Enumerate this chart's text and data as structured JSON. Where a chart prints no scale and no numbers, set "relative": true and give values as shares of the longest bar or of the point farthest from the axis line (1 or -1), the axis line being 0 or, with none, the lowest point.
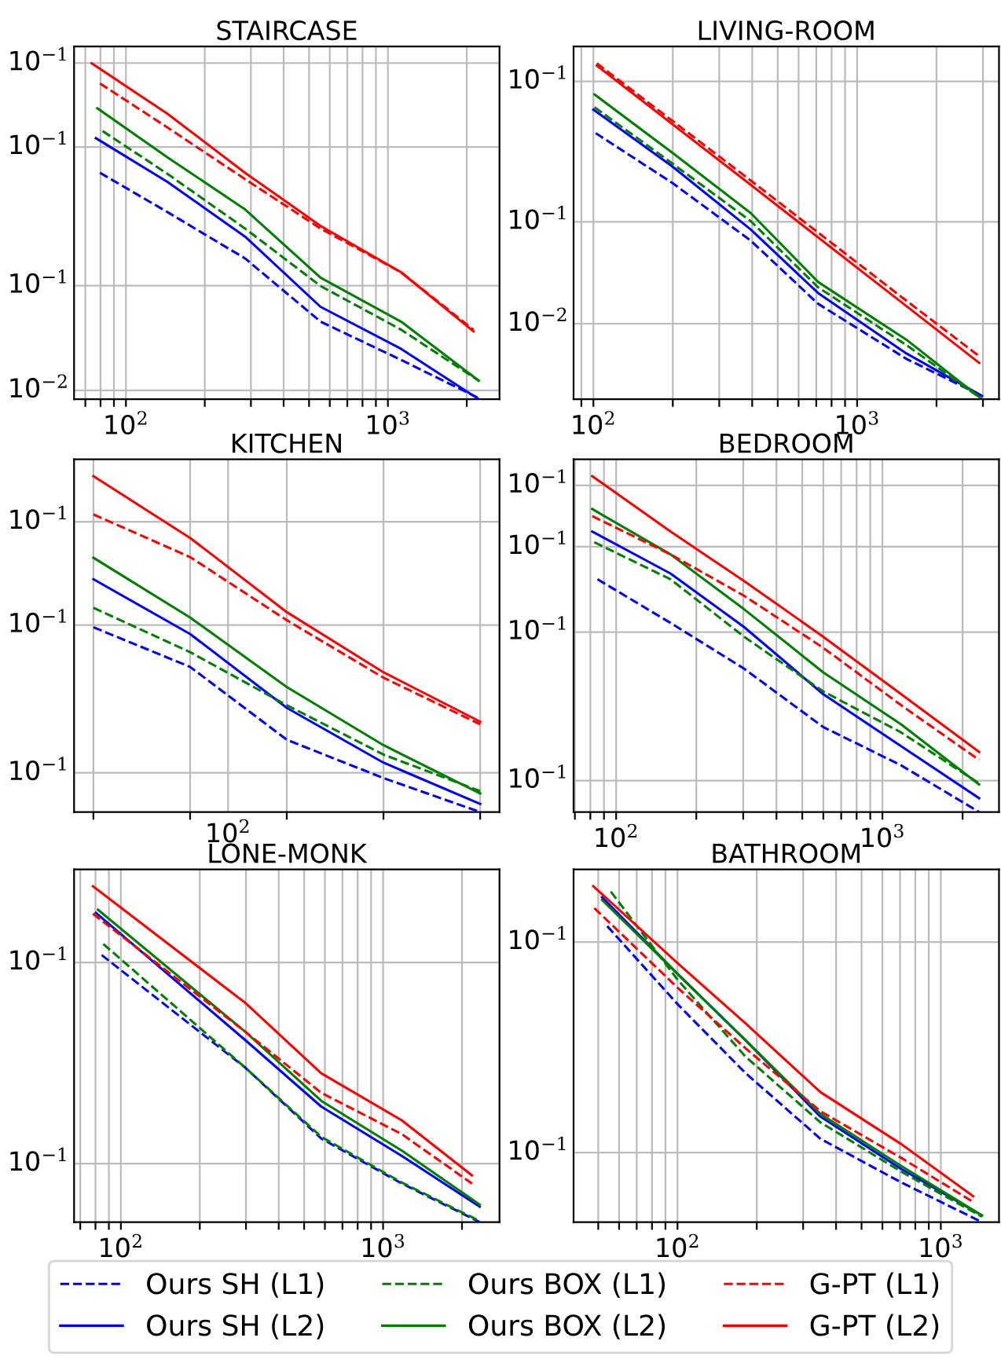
{
  "chart_data": [
    {
      "type": "line",
      "title": "STAIRCASE",
      "relative": true,
      "log": "x",
      "grid": true,
      "legend": "bottom",
      "xlim": [
        63.4,
        2667
      ],
      "xticks": [
        {
          "value": 70,
          "label": null
        },
        {
          "value": 80,
          "label": null
        },
        {
          "value": 90,
          "label": null
        },
        {
          "value": 100,
          "label": "10$^{2}$"
        },
        {
          "value": 200,
          "label": null
        },
        {
          "value": 300,
          "label": null
        },
        {
          "value": 400,
          "label": null
        },
        {
          "value": 500,
          "label": null
        },
        {
          "value": 600,
          "label": null
        },
        {
          "value": 700,
          "label": null
        },
        {
          "value": 800,
          "label": null
        },
        {
          "value": 900,
          "label": null
        },
        {
          "value": 1000,
          "label": "10$^{3}$"
        },
        {
          "value": 2000,
          "label": null
        }
      ],
      "annotations": [
        "10$^{−1}$",
        "10$^{−1}$",
        "10$^{−1}$",
        "10$^{−2}$"
      ],
      "series": [
        {
          "name": "Ours SH (L1)",
          "color": "#0000ff",
          "line_style": "dashed",
          "x": [
            79.6,
            144,
            285,
            553,
            1122,
            2223
          ],
          "values": [
            0.674,
            0.557,
            0.419,
            0.231,
            0.117,
            0.003
          ]
        },
        {
          "name": "Ours SH (L2)",
          "color": "#0000ff",
          "line_style": "solid",
          "x": [
            76.8,
            144,
            285,
            553,
            1122,
            2223
          ],
          "values": [
            0.777,
            0.647,
            0.484,
            0.275,
            0.15,
            0
          ]
        },
        {
          "name": "Ours BOX (L1)",
          "color": "#008000",
          "line_style": "dashed",
          "x": [
            81.5,
            144,
            285,
            553,
            1122,
            2223
          ],
          "values": [
            0.798,
            0.671,
            0.508,
            0.337,
            0.207,
            0.055
          ]
        },
        {
          "name": "Ours BOX (L2)",
          "color": "#008000",
          "line_style": "solid",
          "x": [
            77.8,
            144,
            285,
            553,
            1122,
            2223
          ],
          "values": [
            0.866,
            0.72,
            0.565,
            0.362,
            0.231,
            0.055
          ]
        },
        {
          "name": "G-PT (L1)",
          "color": "#ff0000",
          "line_style": "dashed",
          "x": [
            79.6,
            144,
            285,
            553,
            1122,
            2120
          ],
          "values": [
            0.94,
            0.809,
            0.655,
            0.508,
            0.378,
            0.207
          ]
        },
        {
          "name": "G-PT (L2)",
          "color": "#ff0000",
          "line_style": "solid",
          "x": [
            74,
            144,
            285,
            553,
            1122,
            2120
          ],
          "values": [
            1,
            0.85,
            0.674,
            0.516,
            0.378,
            0.202
          ]
        }
      ]
    },
    {
      "type": "line",
      "title": "LIVING-ROOM",
      "relative": true,
      "log": "x",
      "grid": true,
      "xlim": [
        84.1,
        3451
      ],
      "xticks": [
        {
          "value": 90,
          "label": null
        },
        {
          "value": 100,
          "label": "10$^{2}$"
        },
        {
          "value": 200,
          "label": null
        },
        {
          "value": 300,
          "label": null
        },
        {
          "value": 400,
          "label": null
        },
        {
          "value": 500,
          "label": null
        },
        {
          "value": 600,
          "label": null
        },
        {
          "value": 700,
          "label": null
        },
        {
          "value": 800,
          "label": null
        },
        {
          "value": 900,
          "label": null
        },
        {
          "value": 1000,
          "label": "10$^{3}$"
        },
        {
          "value": 2000,
          "label": null
        },
        {
          "value": 3000,
          "label": null
        }
      ],
      "annotations": [
        "10$^{−1}$",
        "10$^{−1}$",
        "10$^{−2}$"
      ],
      "series": [
        {
          "color": "#0000ff",
          "line_style": "dashed",
          "x": [
            102,
            199,
            395,
            711,
            1538,
            2972
          ],
          "values": [
            0.792,
            0.644,
            0.472,
            0.284,
            0.12,
            0.01
          ]
        },
        {
          "color": "#0000ff",
          "line_style": "solid",
          "x": [
            100,
            199,
            395,
            711,
            1538,
            2972
          ],
          "values": [
            0.862,
            0.693,
            0.505,
            0.316,
            0.136,
            0.01
          ]
        },
        {
          "color": "#008000",
          "line_style": "dashed",
          "x": [
            101,
            199,
            395,
            711,
            1538,
            2972
          ],
          "values": [
            0.869,
            0.702,
            0.53,
            0.333,
            0.161,
            0
          ]
        },
        {
          "color": "#008000",
          "line_style": "solid",
          "x": [
            101,
            199,
            395,
            711,
            1538,
            2972
          ],
          "values": [
            0.907,
            0.734,
            0.554,
            0.349,
            0.177,
            0
          ]
        },
        {
          "color": "#ff0000",
          "line_style": "dashed",
          "x": [
            103,
            395,
            1538,
            2904
          ],
          "values": [
            1,
            0.651,
            0.293,
            0.128
          ]
        },
        {
          "color": "#ff0000",
          "line_style": "solid",
          "x": [
            103,
            395,
            1538,
            2904
          ],
          "values": [
            0.993,
            0.638,
            0.277,
            0.108
          ]
        }
      ]
    },
    {
      "type": "line",
      "title": "KITCHEN",
      "relative": true,
      "grid": true,
      "categories": [
        null,
        null,
        null,
        null,
        null
      ],
      "annotations": [
        "10$^{−1}$",
        "10$^{−1}$",
        "10$^{−1}$",
        "10$^{2}$"
      ],
      "series": [
        {
          "color": "#0000ff",
          "line_style": "dashed",
          "values": [
            0.55,
            0.432,
            0.215,
            0.101,
            0
          ]
        },
        {
          "color": "#0000ff",
          "line_style": "solid",
          "values": [
            0.693,
            0.53,
            0.31,
            0.147,
            0.024
          ]
        },
        {
          "color": "#008000",
          "line_style": "dashed",
          "values": [
            0.608,
            0.476,
            0.318,
            0.171,
            0.062
          ]
        },
        {
          "color": "#008000",
          "line_style": "solid",
          "values": [
            0.757,
            0.579,
            0.372,
            0.199,
            0.055
          ]
        },
        {
          "color": "#ff0000",
          "line_style": "dashed",
          "values": [
            0.886,
            0.759,
            0.571,
            0.4,
            0.261
          ]
        },
        {
          "color": "#ff0000",
          "line_style": "solid",
          "values": [
            1,
            0.816,
            0.595,
            0.416,
            0.269
          ]
        }
      ]
    },
    {
      "type": "line",
      "title": "BEDROOM",
      "relative": true,
      "log": "x",
      "grid": true,
      "xlim": [
        69.2,
        2740
      ],
      "xticks": [
        {
          "value": 70,
          "label": null
        },
        {
          "value": 80,
          "label": null
        },
        {
          "value": 90,
          "label": null
        },
        {
          "value": 100,
          "label": "10$^{2}$"
        },
        {
          "value": 200,
          "label": null
        },
        {
          "value": 300,
          "label": null
        },
        {
          "value": 400,
          "label": null
        },
        {
          "value": 500,
          "label": null
        },
        {
          "value": 600,
          "label": null
        },
        {
          "value": 700,
          "label": null
        },
        {
          "value": 800,
          "label": null
        },
        {
          "value": 900,
          "label": null
        },
        {
          "value": 1000,
          "label": "10$^{3}$"
        },
        {
          "value": 2000,
          "label": null
        }
      ],
      "annotations": [
        "10$^{−1}$",
        "10$^{−1}$",
        "10$^{−1}$",
        "10$^{−1}$"
      ],
      "series": [
        {
          "color": "#0000ff",
          "line_style": "dashed",
          "x": [
            85.1,
            160,
            302,
            599,
            1175,
            2307
          ],
          "values": [
            0.693,
            0.563,
            0.427,
            0.253,
            0.139,
            0
          ]
        },
        {
          "color": "#0000ff",
          "line_style": "solid",
          "x": [
            81.3,
            160,
            302,
            599,
            1175,
            2307
          ],
          "values": [
            0.835,
            0.71,
            0.551,
            0.351,
            0.196,
            0.041
          ]
        },
        {
          "color": "#008000",
          "line_style": "dashed",
          "x": [
            82.8,
            160,
            302,
            599,
            1175,
            2307
          ],
          "values": [
            0.803,
            0.693,
            0.522,
            0.359,
            0.237,
            0.085
          ]
        },
        {
          "color": "#008000",
          "line_style": "solid",
          "x": [
            81.3,
            160,
            302,
            599,
            1175,
            2307
          ],
          "values": [
            0.902,
            0.767,
            0.604,
            0.416,
            0.261,
            0.082
          ]
        },
        {
          "color": "#ff0000",
          "line_style": "dashed",
          "x": [
            81.3,
            160,
            302,
            599,
            1175,
            2307
          ],
          "values": [
            0.881,
            0.767,
            0.644,
            0.489,
            0.318,
            0.155
          ]
        },
        {
          "color": "#ff0000",
          "line_style": "solid",
          "x": [
            81.3,
            160,
            302,
            599,
            1175,
            2307
          ],
          "values": [
            1,
            0.835,
            0.688,
            0.522,
            0.351,
            0.179
          ]
        }
      ]
    },
    {
      "type": "line",
      "title": "LONE-MONK",
      "relative": true,
      "log": "x",
      "grid": true,
      "xlim": [
        66.3,
        2780
      ],
      "xticks": [
        {
          "value": 70,
          "label": null
        },
        {
          "value": 80,
          "label": null
        },
        {
          "value": 90,
          "label": null
        },
        {
          "value": 100,
          "label": "10$^{2}$"
        },
        {
          "value": 200,
          "label": null
        },
        {
          "value": 300,
          "label": null
        },
        {
          "value": 400,
          "label": null
        },
        {
          "value": 500,
          "label": null
        },
        {
          "value": 600,
          "label": null
        },
        {
          "value": 700,
          "label": null
        },
        {
          "value": 800,
          "label": null
        },
        {
          "value": 900,
          "label": null
        },
        {
          "value": 1000,
          "label": "10$^{3}$"
        },
        {
          "value": 2000,
          "label": null
        }
      ],
      "annotations": [
        "10$^{−1}$",
        "10$^{−1}$"
      ],
      "series": [
        {
          "color": "#0000ff",
          "line_style": "dashed",
          "x": [
            84.5,
            299,
            581,
            1178,
            2337
          ],
          "values": [
            0.795,
            0.459,
            0.249,
            0.115,
            0
          ]
        },
        {
          "color": "#0000ff",
          "line_style": "solid",
          "x": [
            80.3,
            299,
            581,
            1178,
            2337
          ],
          "values": [
            0.921,
            0.541,
            0.344,
            0.197,
            0.046
          ]
        },
        {
          "color": "#008000",
          "line_style": "dashed",
          "x": [
            85.7,
            299,
            581,
            1178,
            2337
          ],
          "values": [
            0.828,
            0.459,
            0.254,
            0.118,
            0.003
          ]
        },
        {
          "color": "#008000",
          "line_style": "solid",
          "x": [
            81.8,
            299,
            581,
            1178,
            2337
          ],
          "values": [
            0.93,
            0.566,
            0.361,
            0.213,
            0.052
          ]
        },
        {
          "color": "#ff0000",
          "line_style": "dashed",
          "x": [
            78.2,
            299,
            581,
            1178,
            2183
          ],
          "values": [
            0.918,
            0.566,
            0.385,
            0.262,
            0.115
          ]
        },
        {
          "color": "#ff0000",
          "line_style": "solid",
          "x": [
            78.2,
            299,
            581,
            1178,
            2183
          ],
          "values": [
            1,
            0.652,
            0.443,
            0.303,
            0.139
          ]
        }
      ]
    },
    {
      "type": "line",
      "title": "BATHROOM",
      "relative": true,
      "log": "x",
      "grid": true,
      "xlim": [
        40.3,
        1663
      ],
      "xticks": [
        {
          "value": 50,
          "label": null
        },
        {
          "value": 60,
          "label": null
        },
        {
          "value": 70,
          "label": null
        },
        {
          "value": 80,
          "label": null
        },
        {
          "value": 90,
          "label": null
        },
        {
          "value": 100,
          "label": "10$^{2}$"
        },
        {
          "value": 200,
          "label": null
        },
        {
          "value": 300,
          "label": null
        },
        {
          "value": 400,
          "label": null
        },
        {
          "value": 500,
          "label": null
        },
        {
          "value": 600,
          "label": null
        },
        {
          "value": 700,
          "label": null
        },
        {
          "value": 800,
          "label": null
        },
        {
          "value": 900,
          "label": null
        },
        {
          "value": 1000,
          "label": "10$^{3}$"
        }
      ],
      "annotations": [
        "10$^{−1}$",
        "10$^{−1}$"
      ],
      "series": [
        {
          "color": "#0000ff",
          "line_style": "dashed",
          "x": [
            54.1,
            100,
            181,
            349,
            708,
            1432
          ],
          "values": [
            0.881,
            0.649,
            0.444,
            0.248,
            0.118,
            0
          ]
        },
        {
          "color": "#0000ff",
          "line_style": "solid",
          "x": [
            51.7,
            100,
            181,
            349,
            708,
            1432
          ],
          "values": [
            0.967,
            0.739,
            0.542,
            0.314,
            0.158,
            0.02
          ]
        },
        {
          "color": "#008000",
          "line_style": "dashed",
          "x": [
            55.8,
            100,
            181,
            349,
            708,
            1432
          ],
          "values": [
            0.984,
            0.722,
            0.493,
            0.297,
            0.15,
            0.016
          ]
        },
        {
          "color": "#008000",
          "line_style": "solid",
          "x": [
            51.7,
            100,
            181,
            349,
            708,
            1432
          ],
          "values": [
            0.959,
            0.739,
            0.542,
            0.322,
            0.167,
            0.02
          ]
        },
        {
          "color": "#ff0000",
          "line_style": "dashed",
          "x": [
            48.3,
            100,
            181,
            349,
            708,
            1327
          ],
          "values": [
            0.935,
            0.698,
            0.518,
            0.33,
            0.191,
            0.06
          ]
        },
        {
          "color": "#ff0000",
          "line_style": "solid",
          "x": [
            47.9,
            100,
            181,
            349,
            708,
            1327
          ],
          "values": [
            1,
            0.771,
            0.592,
            0.387,
            0.232,
            0.077
          ]
        }
      ]
    }
  ]
}
